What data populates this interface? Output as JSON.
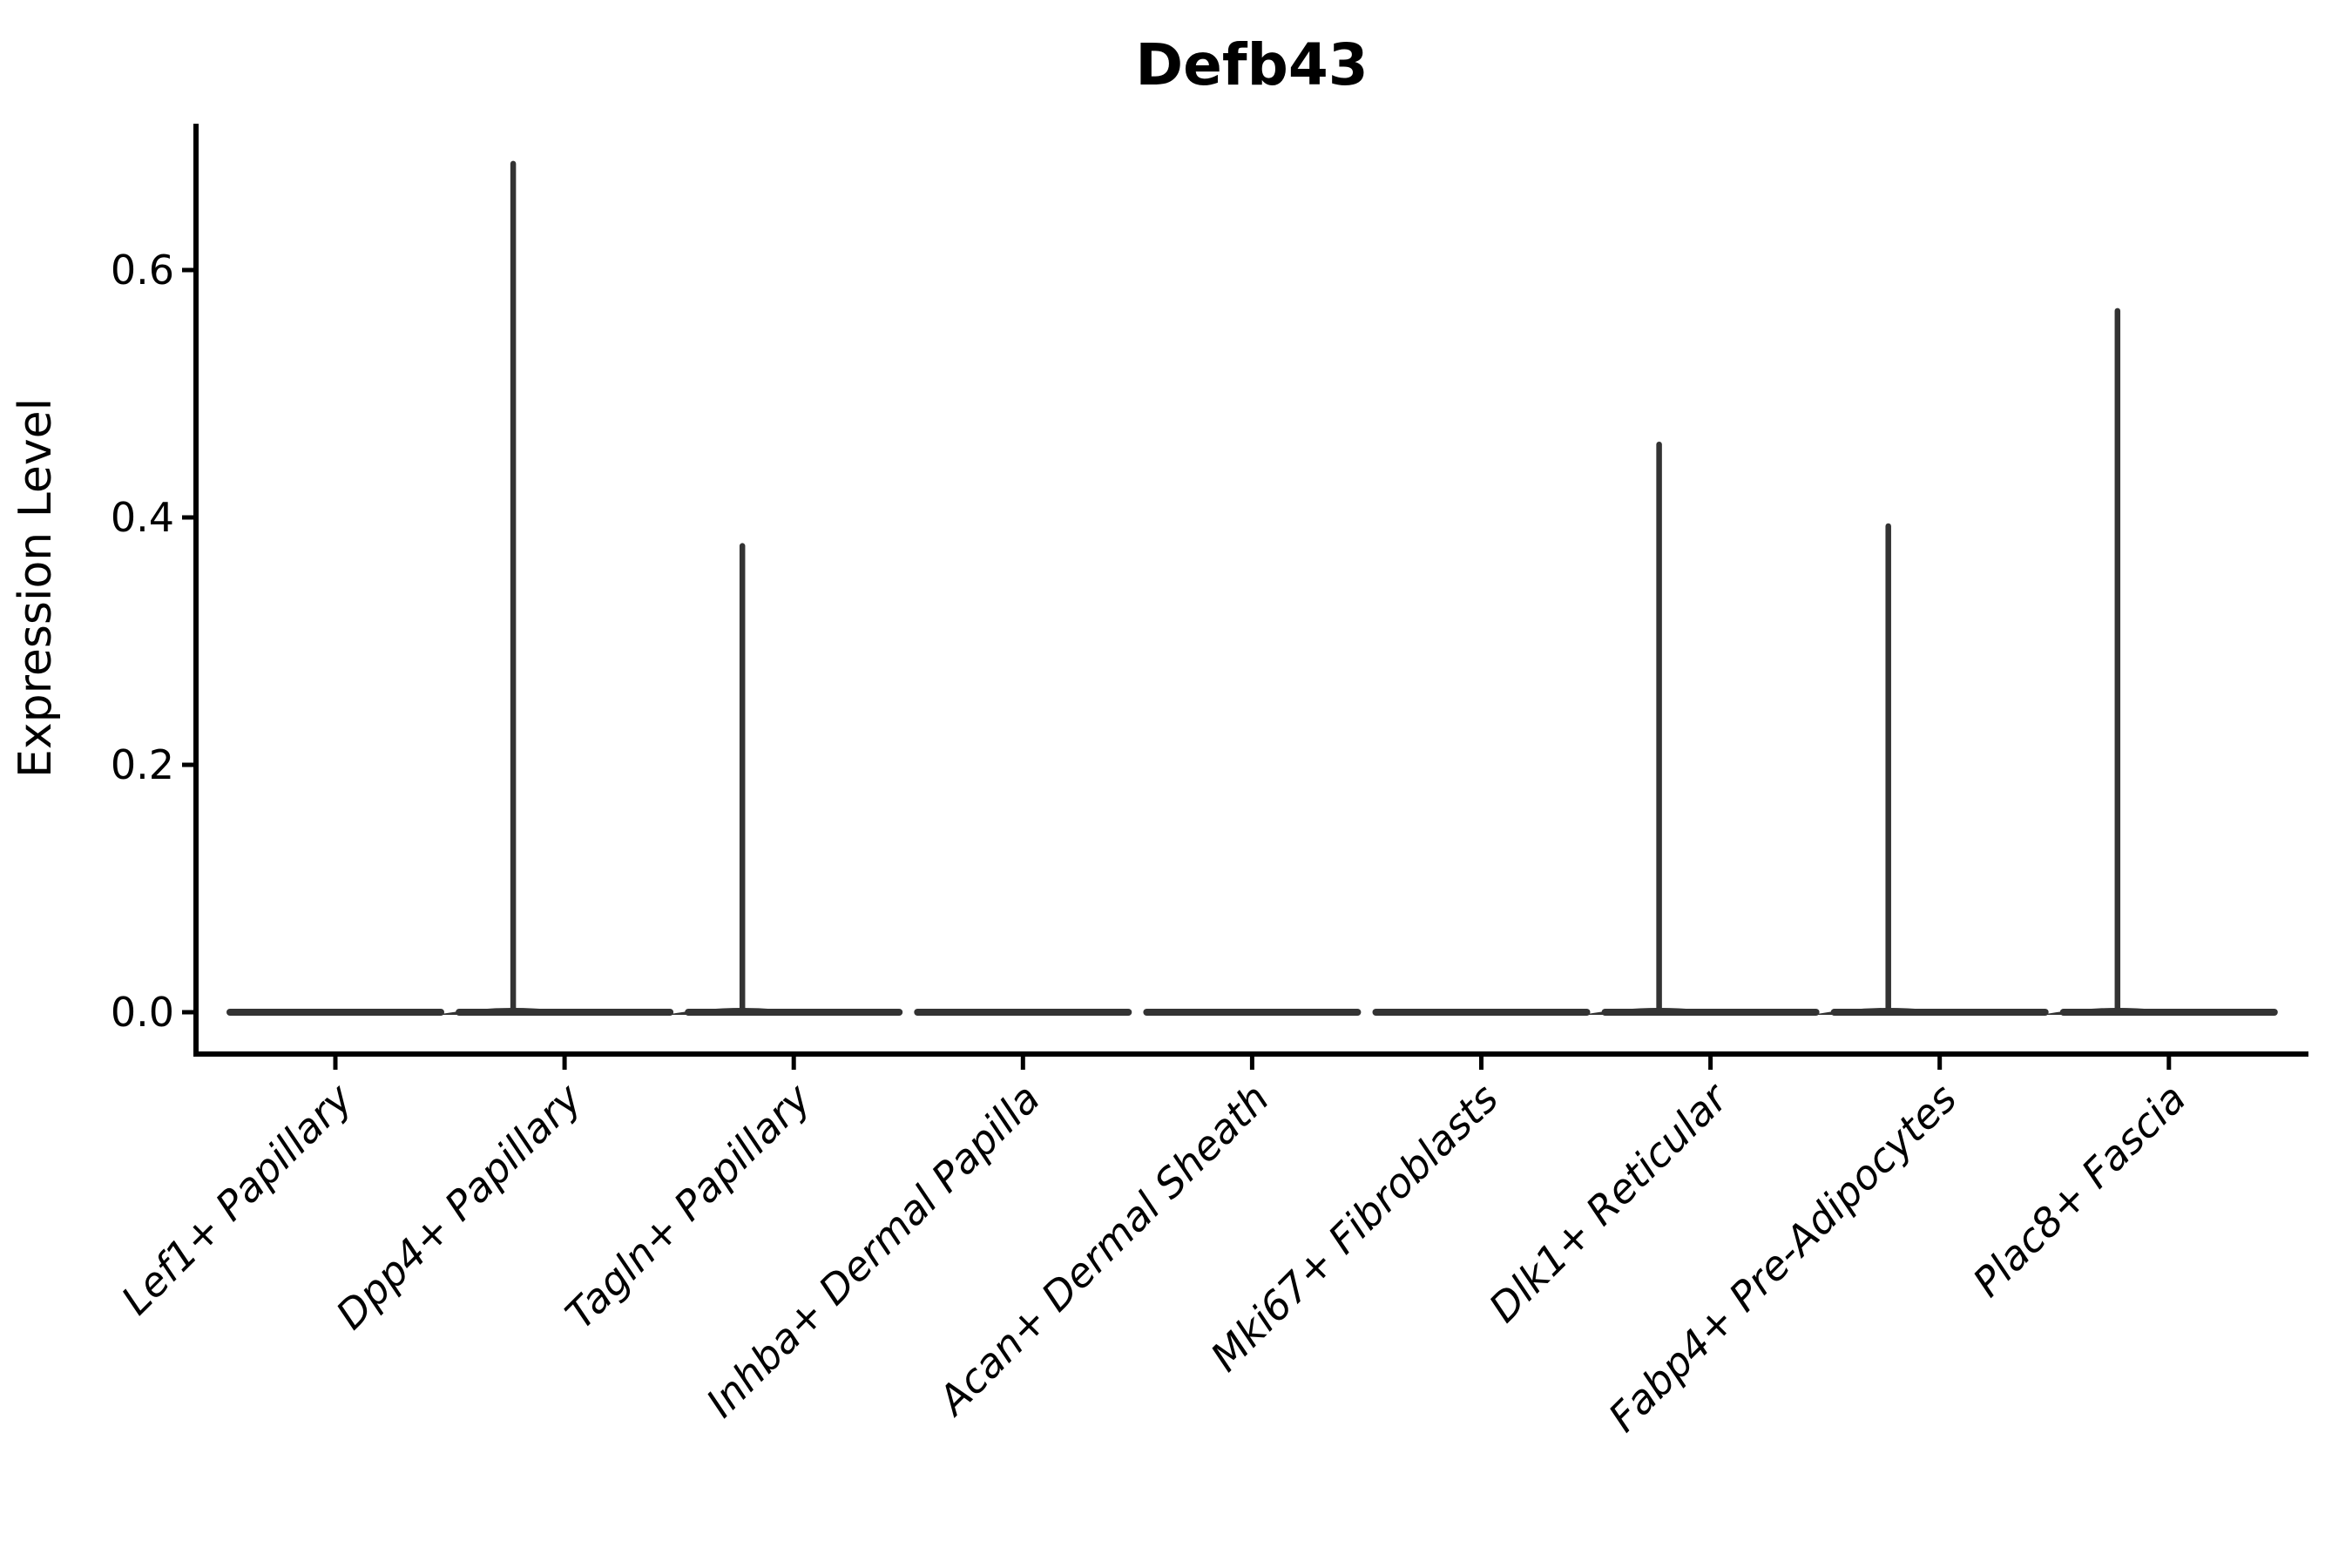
{
  "figure": {
    "background": "#ffffff"
  },
  "chart_data": {
    "type": "violin",
    "title": "Defb43",
    "xlabel": "",
    "ylabel": "Expression Level",
    "categories": [
      "Lef1+ Papillary",
      "Dpp4+ Papillary",
      "Tagln+ Papillary",
      "Inhba+ Dermal Papilla",
      "Acan+ Dermal Sheath",
      "Mki67+ Fibroblasts",
      "Dlk1+ Reticular",
      "Fabp4+ Pre-Adipocytes",
      "Plac8+ Fascia"
    ],
    "violins": [
      {
        "category": "Lef1+ Papillary",
        "max_expression": 0.0,
        "has_spike": false
      },
      {
        "category": "Dpp4+ Papillary",
        "max_expression": 0.686,
        "has_spike": true
      },
      {
        "category": "Tagln+ Papillary",
        "max_expression": 0.377,
        "has_spike": true
      },
      {
        "category": "Inhba+ Dermal Papilla",
        "max_expression": 0.0,
        "has_spike": false
      },
      {
        "category": "Acan+ Dermal Sheath",
        "max_expression": 0.0,
        "has_spike": false
      },
      {
        "category": "Mki67+ Fibroblasts",
        "max_expression": 0.0,
        "has_spike": false
      },
      {
        "category": "Dlk1+ Reticular",
        "max_expression": 0.459,
        "has_spike": true
      },
      {
        "category": "Fabp4+ Pre-Adipocytes",
        "max_expression": 0.393,
        "has_spike": true
      },
      {
        "category": "Plac8+ Fascia",
        "max_expression": 0.567,
        "has_spike": true
      }
    ],
    "y_ticks": [
      "0.0",
      "0.2",
      "0.4",
      "0.6"
    ],
    "y_tick_values": [
      0.0,
      0.2,
      0.4,
      0.6
    ],
    "ylim": [
      -0.034,
      0.72
    ],
    "baseline_value": 0.0,
    "grid": false,
    "legend": "none",
    "colors": {
      "violin": "#333333",
      "axis": "#000000",
      "text": "#000000"
    }
  }
}
